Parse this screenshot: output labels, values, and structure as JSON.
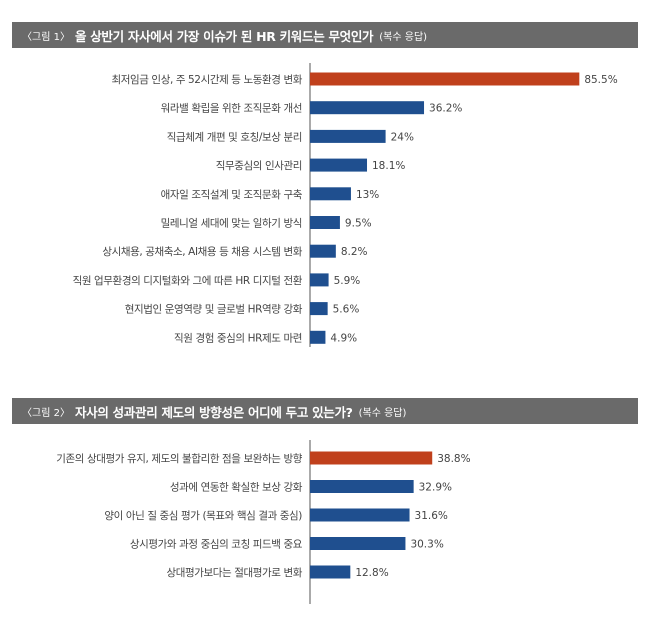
{
  "colors": {
    "header_bg": "#6a6a6a",
    "highlight": "#c0401c",
    "bar": "#1f4f8f",
    "axis": "#555555",
    "text": "#444444"
  },
  "chart_data": [
    {
      "type": "bar",
      "orientation": "horizontal",
      "figure_label": "〈그림 1〉",
      "title": "올 상반기 자사에서 가장 이슈가 된 HR 키워드는 무엇인가",
      "note": "(복수 응답)",
      "categories": [
        "최저임금 인상, 주 52시간제 등 노동환경 변화",
        "워라밸 확립을 위한 조직문화 개선",
        "직급체계 개편 및 호칭/보상 분리",
        "직무중심의 인사관리",
        "애자일 조직설계 및 조직문화 구축",
        "밀레니얼 세대에 맞는 일하기 방식",
        "상시채용, 공채축소, AI채용 등 채용 시스템 변화",
        "직원 업무환경의 디지털화와 그에 따른 HR 디지털 전환",
        "현지법인 운영역량 및 글로벌 HR역량 강화",
        "직원 경험 중심의 HR제도 마련"
      ],
      "values": [
        85.5,
        36.2,
        24,
        18.1,
        13,
        9.5,
        8.2,
        5.9,
        5.6,
        4.9
      ],
      "value_labels": [
        "85.5%",
        "36.2%",
        "24%",
        "18.1%",
        "13%",
        "9.5%",
        "8.2%",
        "5.9%",
        "5.6%",
        "4.9%"
      ],
      "highlight_index": 0,
      "xlim": [
        0,
        100
      ],
      "grid": false
    },
    {
      "type": "bar",
      "orientation": "horizontal",
      "figure_label": "〈그림 2〉",
      "title": "자사의 성과관리 제도의 방향성은 어디에 두고 있는가?",
      "note": "(복수 응답)",
      "categories": [
        "기존의 상대평가 유지, 제도의 불합리한 점을 보완하는 방향",
        "성과에 연동한 확실한 보상 강화",
        "양이 아닌 질 중심 평가 (목표와 핵심 결과 중심)",
        "상시평가와 과정 중심의 코칭 피드백 중요",
        "상대평가보다는 절대평가로 변화"
      ],
      "values": [
        38.8,
        32.9,
        31.6,
        30.3,
        12.8
      ],
      "value_labels": [
        "38.8%",
        "32.9%",
        "31.6%",
        "30.3%",
        "12.8%"
      ],
      "highlight_index": 0,
      "xlim": [
        0,
        100
      ],
      "grid": false
    }
  ]
}
